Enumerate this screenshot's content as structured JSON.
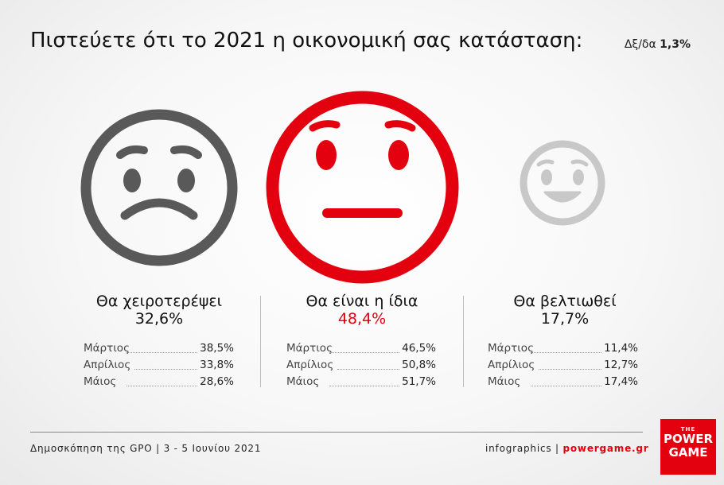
{
  "title": "Πιστεύετε ότι το 2021 η οικονομική σας κατάσταση:",
  "margin_label": "Δξ/δα",
  "margin_value": "1,3%",
  "chart_data": {
    "type": "table",
    "categories": [
      "Θα χειροτερέψει",
      "Θα είναι η ίδια",
      "Θα βελτιωθεί"
    ],
    "values": [
      "32,6%",
      "48,4%",
      "17,7%"
    ],
    "history_months": [
      "Μάρτιος",
      "Απρίλιος",
      "Μάιος"
    ],
    "series": [
      {
        "name": "Θα χειροτερέψει",
        "values": [
          "38,5%",
          "33,8%",
          "28,6%"
        ]
      },
      {
        "name": "Θα είναι η ίδια",
        "values": [
          "46,5%",
          "50,8%",
          "51,7%"
        ]
      },
      {
        "name": "Θα βελτιωθεί",
        "values": [
          "11,4%",
          "12,7%",
          "17,4%"
        ]
      }
    ]
  },
  "colors": {
    "worse": "#595959",
    "same": "#e3000f",
    "better": "#c8c8c8"
  },
  "icons": [
    "sad-face-icon",
    "neutral-face-icon",
    "happy-face-icon"
  ],
  "footer": {
    "source": "Δημοσκόπηση της GPO | 3 - 5 Ιουνίου 2021",
    "credit_prefix": "infographics |",
    "credit_site": "powergame.gr"
  },
  "logo": {
    "top": "THE",
    "line1": "POWER",
    "line2": "GAME"
  }
}
